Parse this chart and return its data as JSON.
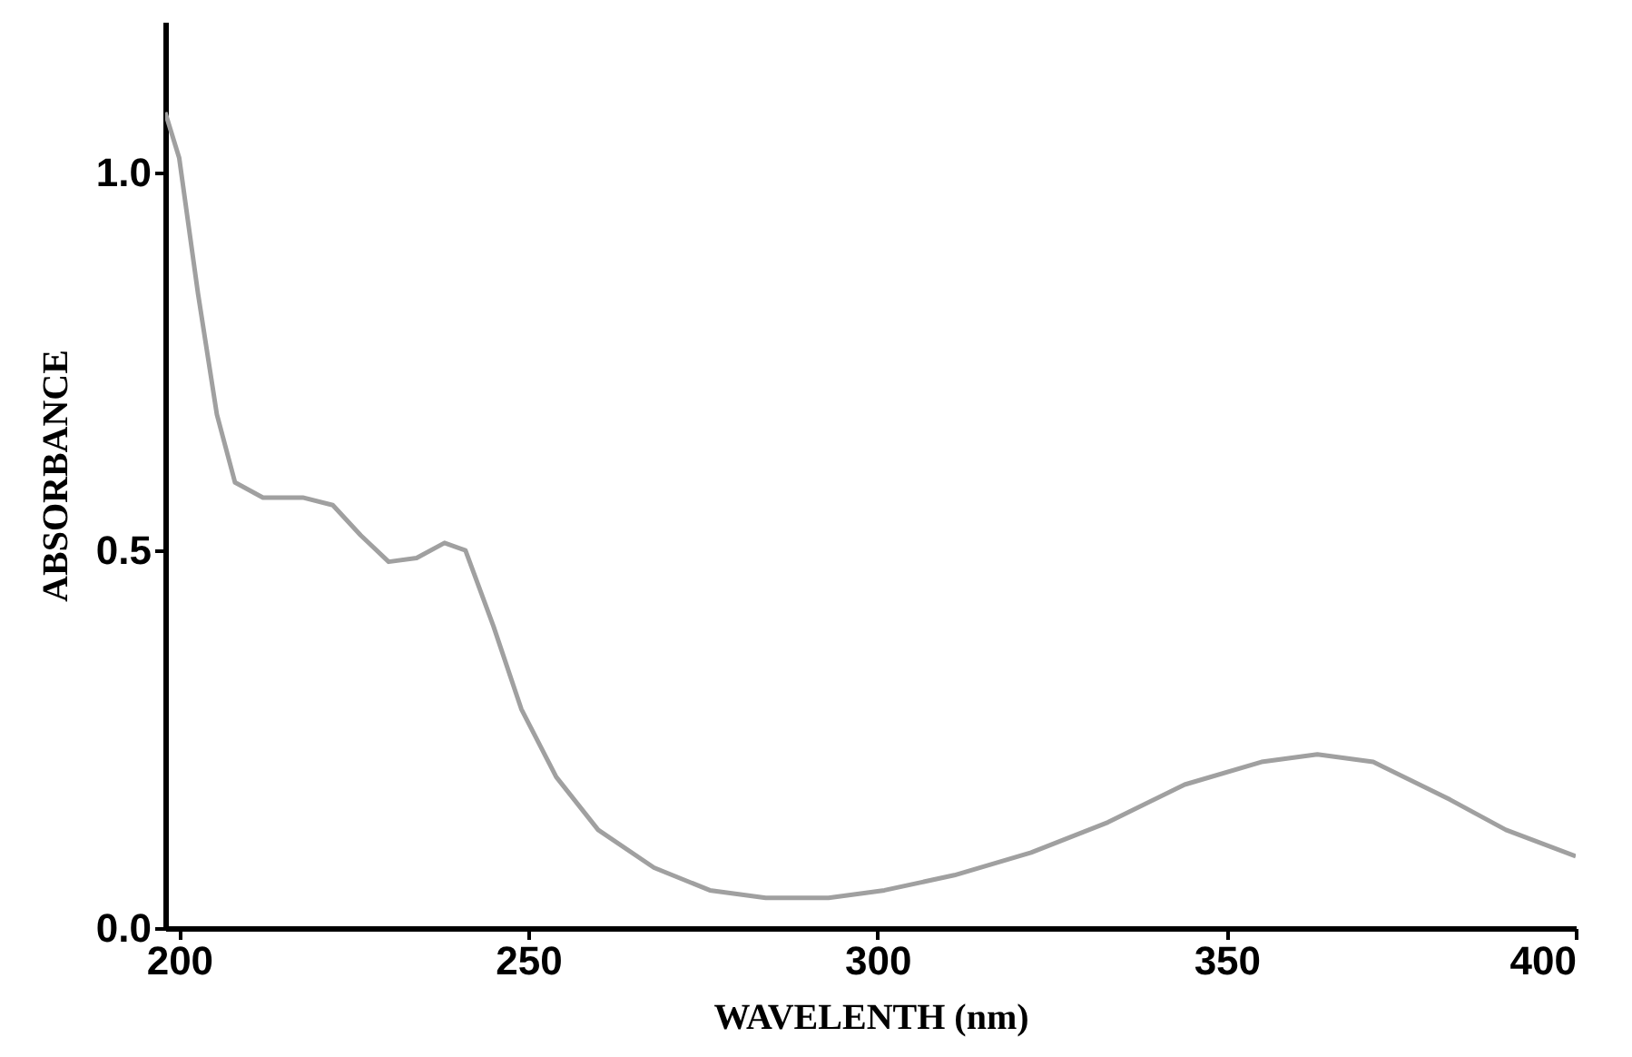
{
  "chart_data": {
    "type": "line",
    "xlabel": "WAVELENTH (nm)",
    "ylabel": "ABSORBANCE",
    "x": [
      198,
      200,
      202.7,
      205.4,
      208,
      212,
      217.7,
      222,
      226,
      230,
      234,
      238,
      241,
      245,
      249,
      254,
      260,
      268,
      276,
      284,
      293,
      301,
      311,
      322,
      333,
      344,
      355,
      363,
      371,
      382,
      390,
      400
    ],
    "series": [
      {
        "color": "#a0a0a0",
        "values": [
          1.08,
          1.02,
          0.84,
          0.68,
          0.59,
          0.57,
          0.57,
          0.56,
          0.52,
          0.485,
          0.49,
          0.51,
          0.5,
          0.4,
          0.29,
          0.2,
          0.13,
          0.08,
          0.05,
          0.04,
          0.04,
          0.05,
          0.07,
          0.1,
          0.14,
          0.19,
          0.22,
          0.23,
          0.22,
          0.17,
          0.13,
          0.095
        ]
      }
    ],
    "xlim": [
      198,
      400
    ],
    "xticks": [
      200,
      250,
      300,
      350,
      400
    ],
    "ylim": [
      0,
      1.2
    ],
    "yticks": [
      {
        "value": 0,
        "label": "0.0"
      },
      {
        "value": 0.5,
        "label": "0.5"
      },
      {
        "value": 1,
        "label": "1.0"
      }
    ],
    "grid": false,
    "marker": "none",
    "line_style": "solid"
  }
}
